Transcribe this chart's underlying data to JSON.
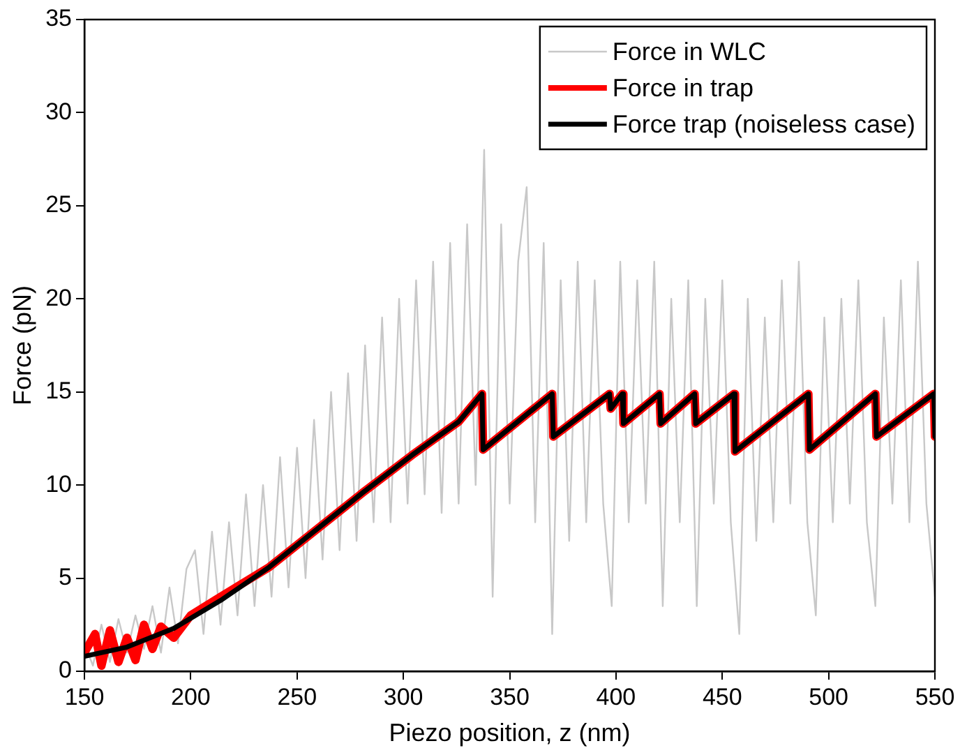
{
  "chart_data": {
    "type": "line",
    "xlabel": "Piezo position, z (nm)",
    "ylabel": "Force (pN)",
    "xlim": [
      150,
      550
    ],
    "xticks": [
      150,
      200,
      250,
      300,
      350,
      400,
      450,
      500,
      550
    ],
    "ylim": [
      0,
      35
    ],
    "yticks": [
      0,
      5,
      10,
      15,
      20,
      25,
      30,
      35
    ],
    "grid": false,
    "legend": "top right",
    "marker": "none",
    "line_style": "solid",
    "series": [
      {
        "name": "Force in WLC",
        "color": "#c8c8c8",
        "x": [
          150,
          154,
          158,
          162,
          166,
          170,
          174,
          178,
          182,
          186,
          190,
          194,
          198,
          202,
          206,
          210,
          214,
          218,
          222,
          226,
          230,
          234,
          238,
          242,
          246,
          250,
          254,
          258,
          262,
          266,
          270,
          274,
          278,
          282,
          286,
          290,
          294,
          298,
          302,
          306,
          310,
          314,
          318,
          322,
          326,
          330,
          334,
          338,
          342,
          346,
          350,
          354,
          358,
          362,
          366,
          370,
          374,
          378,
          382,
          386,
          390,
          394,
          398,
          402,
          406,
          410,
          414,
          418,
          422,
          426,
          430,
          434,
          438,
          442,
          446,
          450,
          454,
          458,
          462,
          466,
          470,
          474,
          478,
          482,
          486,
          490,
          494,
          498,
          502,
          506,
          510,
          514,
          518,
          522,
          526,
          530,
          534,
          538,
          542,
          546,
          550
        ],
        "values": [
          1.5,
          0.3,
          2.5,
          0.5,
          2.8,
          1.0,
          3.0,
          1.2,
          3.5,
          1.0,
          4.5,
          1.5,
          5.5,
          6.5,
          2.0,
          7.5,
          2.5,
          8.0,
          3.0,
          9.5,
          3.5,
          10.0,
          4.0,
          11.5,
          4.5,
          12.0,
          5.0,
          13.5,
          6.0,
          15.0,
          6.5,
          16.0,
          7.0,
          17.5,
          8.0,
          19.0,
          8.0,
          20.0,
          9.0,
          21.0,
          9.5,
          22.0,
          8.5,
          23.0,
          9.0,
          24.0,
          10.0,
          28.0,
          4.0,
          24.0,
          9.0,
          22.0,
          26.0,
          8.0,
          23.0,
          2.0,
          21.0,
          7.0,
          22.0,
          8.0,
          21.0,
          9.0,
          3.5,
          22.0,
          8.0,
          21.0,
          9.0,
          22.0,
          3.5,
          20.0,
          8.0,
          21.0,
          3.5,
          20.0,
          9.0,
          21.0,
          8.0,
          2.0,
          20.0,
          7.0,
          19.0,
          8.0,
          21.0,
          9.0,
          22.0,
          8.0,
          3.0,
          19.0,
          8.0,
          20.0,
          9.0,
          21.0,
          8.0,
          3.5,
          19.0,
          9.0,
          21.0,
          8.0,
          22.0,
          9.0,
          4.0
        ]
      },
      {
        "name": "Force in trap",
        "color": "#ff0000",
        "x": [
          150,
          155,
          158,
          162,
          166,
          170,
          174,
          178,
          182,
          186,
          192,
          200,
          214,
          237,
          259,
          281,
          304,
          326,
          337,
          337.5,
          370,
          370.5,
          397,
          397.5,
          403,
          403.5,
          420.5,
          421,
          437,
          437.5,
          455.5,
          456,
          490.5,
          491,
          522,
          522.5,
          549.5,
          550
        ],
        "values": [
          1.0,
          2.0,
          0.3,
          2.2,
          0.5,
          1.8,
          0.6,
          2.5,
          1.2,
          2.4,
          1.8,
          3.0,
          4.0,
          5.6,
          7.6,
          9.6,
          11.6,
          13.4,
          14.9,
          11.9,
          14.9,
          12.6,
          14.9,
          14.1,
          14.9,
          13.3,
          14.9,
          13.3,
          14.9,
          13.3,
          14.9,
          11.8,
          14.9,
          11.9,
          14.9,
          12.6,
          14.9,
          12.6
        ]
      },
      {
        "name": "Force trap (noiseless case)",
        "color": "#000000",
        "x": [
          150,
          170,
          192,
          214,
          237,
          259,
          281,
          304,
          326,
          337,
          337.5,
          370,
          370.5,
          397,
          397.5,
          403,
          403.5,
          420.5,
          421,
          437,
          437.5,
          455.5,
          456,
          490.5,
          491,
          522,
          522.5,
          549.5,
          550
        ],
        "values": [
          0.8,
          1.3,
          2.3,
          3.8,
          5.6,
          7.6,
          9.6,
          11.6,
          13.4,
          14.9,
          11.9,
          14.9,
          12.6,
          14.9,
          14.1,
          14.9,
          13.3,
          14.9,
          13.3,
          14.9,
          13.3,
          14.9,
          11.8,
          14.9,
          11.9,
          14.9,
          12.6,
          14.9,
          12.6
        ]
      }
    ]
  }
}
